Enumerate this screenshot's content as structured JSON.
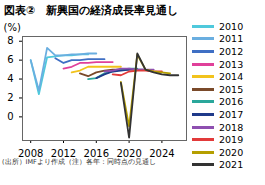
{
  "chart_data": {
    "type": "line",
    "title": "図表②　新興国の経済成長率見通し",
    "y_label": "(%)",
    "caption": "(出所）IMFより作成（注）各年：同時点の見通し",
    "x": [
      2008,
      2009,
      2010,
      2011,
      2012,
      2013,
      2014,
      2015,
      2016,
      2017,
      2018,
      2019,
      2020,
      2021,
      2022,
      2023,
      2024,
      2025,
      2026
    ],
    "xlim": [
      2007,
      2027
    ],
    "xticks": [
      2008,
      2012,
      2016,
      2020,
      2024
    ],
    "ylim": [
      -2.5,
      8.5
    ],
    "yticks": [
      0,
      2,
      4,
      6,
      8
    ],
    "grid": false,
    "legend": "right",
    "series": [
      {
        "name": "2010",
        "color": "#4fc9dc",
        "values": [
          6.0,
          2.4,
          6.3,
          6.4,
          6.5,
          6.5,
          6.6,
          6.6,
          null,
          null,
          null,
          null,
          null,
          null,
          null,
          null,
          null,
          null,
          null
        ]
      },
      {
        "name": "2011",
        "color": "#6aaee0",
        "values": [
          6.0,
          2.8,
          7.3,
          6.5,
          6.5,
          6.6,
          6.6,
          6.7,
          6.7,
          null,
          null,
          null,
          null,
          null,
          null,
          null,
          null,
          null,
          null
        ]
      },
      {
        "name": "2012",
        "color": "#3f6fc4",
        "values": [
          null,
          null,
          null,
          6.2,
          5.7,
          6.0,
          6.0,
          6.1,
          6.1,
          6.1,
          null,
          null,
          null,
          null,
          null,
          null,
          null,
          null,
          null
        ]
      },
      {
        "name": "2013",
        "color": "#e0409a",
        "values": [
          null,
          null,
          null,
          null,
          5.1,
          5.3,
          5.7,
          5.7,
          5.8,
          5.8,
          5.8,
          null,
          null,
          null,
          null,
          null,
          null,
          null,
          null
        ]
      },
      {
        "name": "2014",
        "color": "#f2c31c",
        "values": [
          null,
          null,
          null,
          null,
          null,
          4.7,
          4.9,
          5.3,
          5.3,
          5.3,
          5.3,
          5.3,
          null,
          null,
          null,
          null,
          null,
          null,
          null
        ]
      },
      {
        "name": "2015",
        "color": "#7a4a2a",
        "values": [
          null,
          null,
          null,
          null,
          null,
          null,
          4.6,
          4.3,
          4.7,
          4.9,
          5.0,
          5.0,
          5.0,
          null,
          null,
          null,
          null,
          null,
          null
        ]
      },
      {
        "name": "2016",
        "color": "#2aa79b",
        "values": [
          null,
          null,
          null,
          null,
          null,
          null,
          null,
          4.0,
          4.1,
          4.6,
          4.8,
          5.0,
          5.1,
          5.1,
          null,
          null,
          null,
          null,
          null
        ]
      },
      {
        "name": "2017",
        "color": "#1f3a8a",
        "values": [
          null,
          null,
          null,
          null,
          null,
          null,
          null,
          null,
          4.1,
          4.5,
          4.8,
          4.9,
          5.0,
          5.0,
          5.0,
          null,
          null,
          null,
          null
        ]
      },
      {
        "name": "2018",
        "color": "#8e4fb0",
        "values": [
          null,
          null,
          null,
          null,
          null,
          null,
          null,
          null,
          null,
          4.8,
          4.9,
          5.1,
          5.1,
          5.0,
          5.0,
          5.0,
          null,
          null,
          null
        ]
      },
      {
        "name": "2019",
        "color": "#e23a3a",
        "values": [
          null,
          null,
          null,
          null,
          null,
          null,
          null,
          null,
          null,
          null,
          4.5,
          4.4,
          4.8,
          4.9,
          4.9,
          4.8,
          4.8,
          null,
          null
        ]
      },
      {
        "name": "2020",
        "color": "#b59f00",
        "values": [
          null,
          null,
          null,
          null,
          null,
          null,
          null,
          null,
          null,
          null,
          null,
          3.7,
          -1.0,
          6.6,
          5.0,
          4.8,
          4.7,
          4.6,
          null
        ]
      },
      {
        "name": "2021",
        "color": "#333333",
        "values": [
          null,
          null,
          null,
          null,
          null,
          null,
          null,
          null,
          null,
          null,
          null,
          3.6,
          -2.2,
          6.7,
          5.0,
          4.7,
          4.5,
          4.4,
          4.4
        ]
      }
    ]
  }
}
